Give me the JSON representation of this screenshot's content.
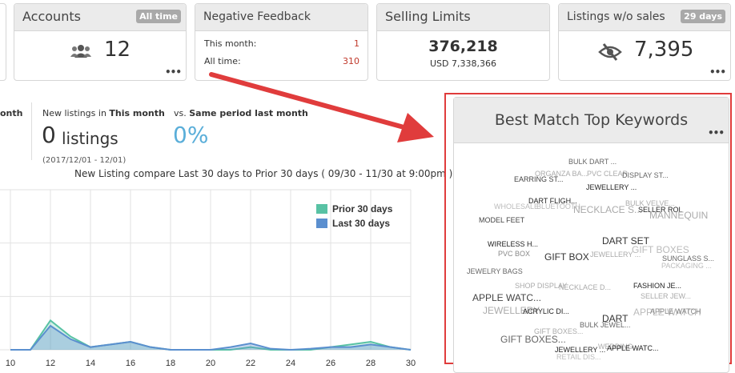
{
  "colors": {
    "accent_blue": "#5aaed9",
    "highlight_red": "#e03c3c",
    "series_prior": "#58c2a4",
    "series_last": "#5b8fcf",
    "negative": "#c0392b"
  },
  "accounts": {
    "title": "Accounts",
    "badge": "All time",
    "value": "12",
    "icon": "users-icon",
    "more": "•••"
  },
  "negative_feedback": {
    "title": "Negative Feedback",
    "this_month_label": "This month:",
    "this_month_value": "1",
    "all_time_label": "All time:",
    "all_time_value": "310",
    "more": "•••"
  },
  "selling_limits": {
    "title": "Selling Limits",
    "value": "376,218",
    "sub": "USD 7,338,366"
  },
  "listings_wo_sales": {
    "title": "Listings w/o sales",
    "badge": "29 days",
    "value": "7,395",
    "icon": "eye-slash-icon",
    "more": "•••"
  },
  "partial_prev": {
    "label": "onth"
  },
  "new_listings": {
    "label_prefix": "New listings in ",
    "label_bold": "This month",
    "value": "0",
    "unit": "listings",
    "range": "(2017/12/01 - 12/01)"
  },
  "vs_period": {
    "label_prefix": "vs. ",
    "label_bold": "Same period last month",
    "value": "0%"
  },
  "chart_data": {
    "type": "area",
    "title": "New Listing compare Last 30 days to Prior 30 days ( 09/30 - 11/30 at 9:00pm )",
    "legend_position": "top-right",
    "x_ticks": [
      "10",
      "12",
      "14",
      "16",
      "18",
      "20",
      "22",
      "24",
      "26",
      "28",
      "30"
    ],
    "x": [
      10,
      11,
      12,
      13,
      14,
      15,
      16,
      17,
      18,
      19,
      20,
      21,
      22,
      23,
      24,
      25,
      26,
      27,
      28,
      29,
      30
    ],
    "ylim": [
      0,
      3
    ],
    "grid": true,
    "series": [
      {
        "name": "Prior 30 days",
        "values": [
          0,
          0,
          0.55,
          0.25,
          0.05,
          0.1,
          0.15,
          0.05,
          0,
          0,
          0,
          0,
          0.05,
          0,
          0,
          0,
          0.05,
          0.1,
          0.15,
          0.05,
          0
        ]
      },
      {
        "name": "Last 30 days",
        "values": [
          0,
          0,
          0.45,
          0.2,
          0.05,
          0.1,
          0.15,
          0.05,
          0,
          0,
          0,
          0.05,
          0.12,
          0.02,
          0,
          0.02,
          0.05,
          0.05,
          0.1,
          0.05,
          0
        ]
      }
    ]
  },
  "keywords_panel": {
    "title": "Best Match Top Keywords",
    "more": "•••",
    "words": [
      "BULK DART ...",
      "ORGANZA BA...",
      "PVC CLEAR",
      "DISPLAY ST...",
      "EARRING ST...",
      "JEWELLERY ...",
      "DART FLIGH...",
      "BULK VELVE...",
      "WHOLESALE",
      "BLUETOOTH",
      "NECKLACE S...",
      "SELLER ROL",
      "MANNEQUIN",
      "MODEL FEET",
      "DART SET",
      "GIFT BOXES",
      "WIRELESS H...",
      "PVC BOX",
      "GIFT BOX",
      "JEWELLERY ...",
      "SUNGLASS S...",
      "PACKAGING ...",
      "JEWELRY BAGS",
      "SHOP DISPLAY",
      "NECKLACE D...",
      "FASHION JE...",
      "APPLE WATC...",
      "SELLER JEW...",
      "JEWELLERY",
      "ACRYLIC DI...",
      "DART",
      "APPLE WATCH",
      "APPLE WATCH",
      "BULK JEWEL...",
      "GIFT BOXES...",
      "GIFT BOXES...",
      "WEDDING ...",
      "JEWELLERY ...",
      "APPLE WATC...",
      "RETAIL DIS..."
    ]
  }
}
